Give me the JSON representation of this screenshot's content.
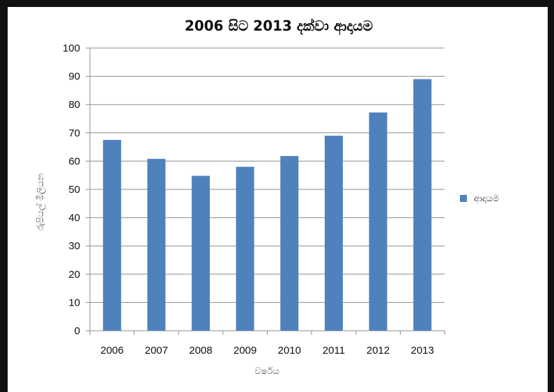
{
  "chart_data": {
    "type": "bar",
    "title": "2006 සිට 2013 දක්වා ආදායම",
    "xlabel": "වර්ෂය",
    "ylabel": "රුපියල් මිලියන",
    "categories": [
      "2006",
      "2007",
      "2008",
      "2009",
      "2010",
      "2011",
      "2012",
      "2013"
    ],
    "series": [
      {
        "name": "ආදායම",
        "values": [
          67.5,
          60.8,
          54.8,
          58,
          61.8,
          69,
          77.2,
          89
        ],
        "color": "#4f81bd"
      }
    ],
    "ylim": [
      0,
      100
    ],
    "yticks": [
      0,
      10,
      20,
      30,
      40,
      50,
      60,
      70,
      80,
      90,
      100
    ],
    "grid": true,
    "legend_position": "right"
  }
}
